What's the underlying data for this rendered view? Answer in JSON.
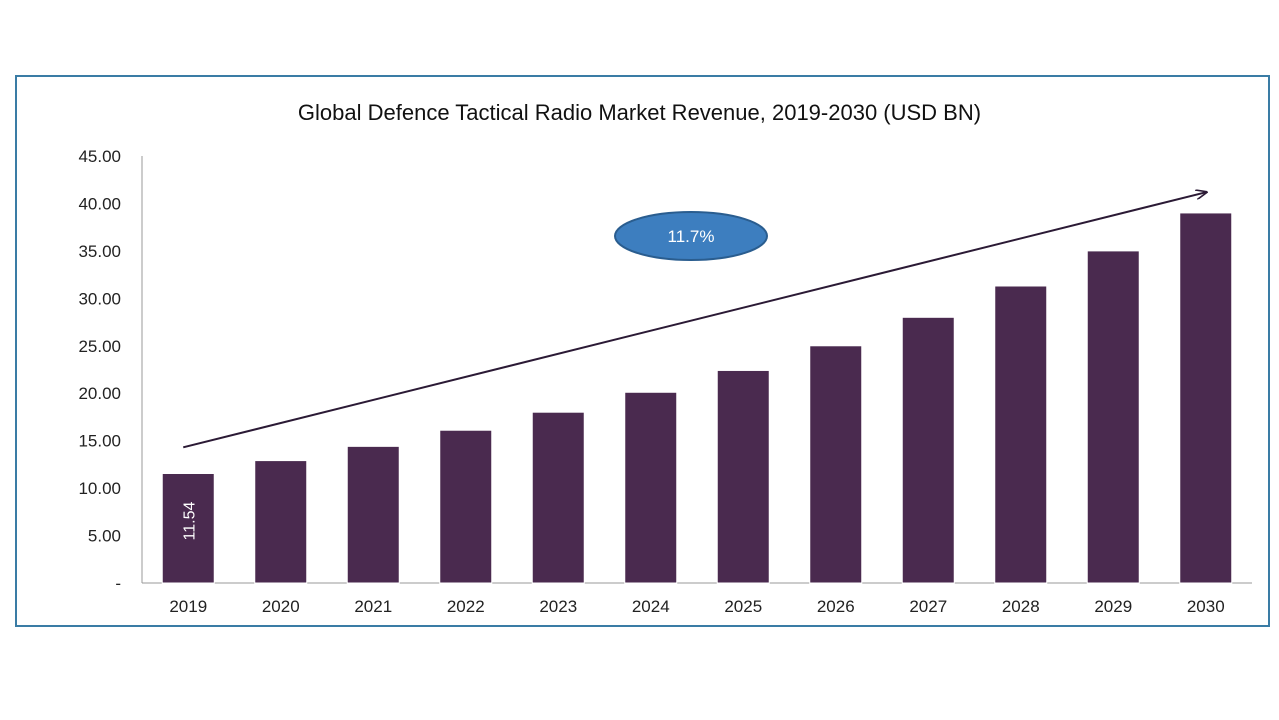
{
  "chart_data": {
    "type": "bar",
    "title": "Global Defence Tactical Radio Market Revenue, 2019-2030 (USD BN)",
    "xlabel": "",
    "ylabel": "",
    "categories": [
      "2019",
      "2020",
      "2021",
      "2022",
      "2023",
      "2024",
      "2025",
      "2026",
      "2027",
      "2028",
      "2029",
      "2030"
    ],
    "values": [
      11.54,
      12.9,
      14.4,
      16.1,
      18.0,
      20.1,
      22.4,
      25.0,
      28.0,
      31.3,
      35.0,
      39.0
    ],
    "ylim": [
      0,
      45
    ],
    "ytick_labels": [
      "-",
      "5.00",
      "10.00",
      "15.00",
      "20.00",
      "25.00",
      "30.00",
      "35.00",
      "40.00",
      "45.00"
    ],
    "data_labels": [
      {
        "index": 0,
        "text": "11.54"
      }
    ],
    "annotation": {
      "text": "11.7%"
    },
    "trend_arrow": {
      "from_value": 14.3,
      "to_value": 41.2
    },
    "grid": false,
    "colors": {
      "bar": "#4a2a4f",
      "frame": "#3a7ca5",
      "bubble": "#3d7ebf",
      "arrow": "#2b1a35"
    }
  }
}
